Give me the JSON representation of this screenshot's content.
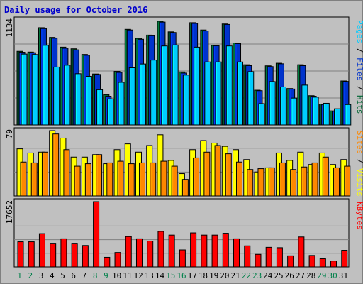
{
  "title": "Daily usage for October 2016",
  "chart_data": [
    {
      "type": "bar",
      "panel": "hits-files-pages",
      "categories": [
        "1",
        "2",
        "3",
        "4",
        "5",
        "6",
        "7",
        "8",
        "9",
        "10",
        "11",
        "12",
        "13",
        "14",
        "15",
        "16",
        "17",
        "18",
        "19",
        "20",
        "21",
        "22",
        "23",
        "24",
        "25",
        "26",
        "27",
        "28",
        "29",
        "30",
        "31"
      ],
      "weekend_days": [
        "1",
        "2",
        "8",
        "9",
        "15",
        "16",
        "22",
        "23",
        "29",
        "30"
      ],
      "ymax_label": "1134",
      "ylim": [
        0,
        1134
      ],
      "series": [
        {
          "name": "Hits",
          "color": "#006633",
          "values": [
            795,
            787,
            1050,
            945,
            840,
            822,
            761,
            550,
            327,
            578,
            1032,
            935,
            970,
            1120,
            1005,
            572,
            1104,
            1025,
            860,
            1090,
            885,
            650,
            375,
            638,
            666,
            393,
            650,
            316,
            226,
            152,
            475
          ]
        },
        {
          "name": "Files",
          "color": "#0033cc",
          "values": [
            785,
            780,
            1040,
            936,
            828,
            811,
            752,
            545,
            310,
            567,
            1025,
            925,
            963,
            1110,
            998,
            560,
            1096,
            1015,
            855,
            1085,
            878,
            640,
            370,
            630,
            660,
            388,
            640,
            310,
            220,
            148,
            470
          ]
        },
        {
          "name": "Pages",
          "color": "#00ccff",
          "values": [
            765,
            760,
            860,
            625,
            645,
            553,
            525,
            380,
            281,
            460,
            617,
            658,
            700,
            853,
            863,
            538,
            840,
            680,
            680,
            853,
            680,
            575,
            230,
            468,
            410,
            290,
            430,
            300,
            234,
            175,
            220
          ]
        }
      ]
    },
    {
      "type": "bar",
      "panel": "visits-sites",
      "categories": [
        "1",
        "2",
        "3",
        "4",
        "5",
        "6",
        "7",
        "8",
        "9",
        "10",
        "11",
        "12",
        "13",
        "14",
        "15",
        "16",
        "17",
        "18",
        "19",
        "20",
        "21",
        "22",
        "23",
        "24",
        "25",
        "26",
        "27",
        "28",
        "29",
        "30",
        "31"
      ],
      "ymax_label": "79",
      "ylim": [
        0,
        79
      ],
      "series": [
        {
          "name": "Visits",
          "color": "#ffff00",
          "values": [
            57,
            52,
            53,
            79,
            70,
            47,
            47,
            50,
            39,
            56,
            63,
            53,
            61,
            74,
            43,
            27,
            56,
            67,
            64,
            60,
            56,
            44,
            29,
            34,
            52,
            43,
            53,
            38,
            52,
            38,
            44
          ]
        },
        {
          "name": "Sites",
          "color": "#ff8800",
          "values": [
            41,
            40,
            53,
            75,
            56,
            36,
            39,
            50,
            40,
            42,
            39,
            40,
            40,
            42,
            36,
            20,
            46,
            53,
            61,
            51,
            41,
            32,
            33,
            34,
            40,
            32,
            35,
            40,
            47,
            34,
            36
          ]
        }
      ]
    },
    {
      "type": "bar",
      "panel": "kbytes",
      "categories": [
        "1",
        "2",
        "3",
        "4",
        "5",
        "6",
        "7",
        "8",
        "9",
        "10",
        "11",
        "12",
        "13",
        "14",
        "15",
        "16",
        "17",
        "18",
        "19",
        "20",
        "21",
        "22",
        "23",
        "24",
        "25",
        "26",
        "27",
        "28",
        "29",
        "30",
        "31"
      ],
      "ymax_label": "17652",
      "ylim": [
        0,
        17652
      ],
      "series": [
        {
          "name": "KBytes",
          "color": "#ff0000",
          "values": [
            6800,
            6800,
            9000,
            6400,
            7600,
            6400,
            5800,
            17652,
            2600,
            3900,
            8200,
            7600,
            7000,
            9600,
            8600,
            4600,
            9200,
            8600,
            8600,
            9100,
            7600,
            5700,
            3400,
            5300,
            5200,
            3000,
            8100,
            3100,
            2200,
            1600,
            4500
          ]
        }
      ]
    }
  ]
}
